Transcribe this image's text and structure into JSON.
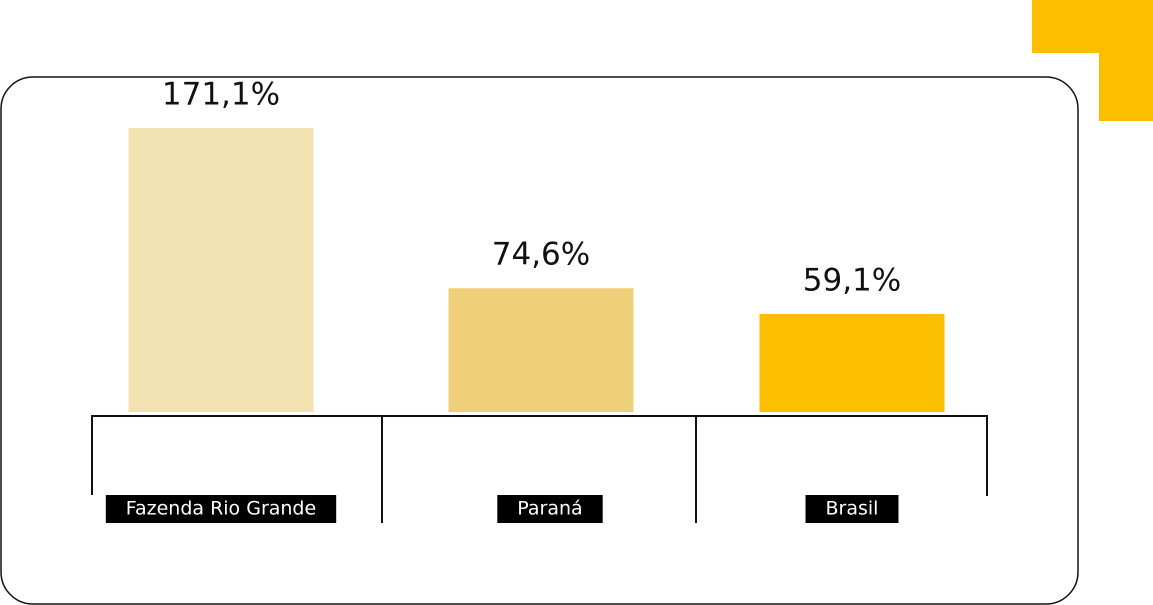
{
  "chart_data": {
    "type": "bar",
    "categories": [
      "Fazenda Rio Grande",
      "Paraná",
      "Brasil"
    ],
    "values": [
      171.1,
      74.6,
      59.1
    ],
    "value_labels": [
      "171,1%",
      "74,6%",
      "59,1%"
    ],
    "colors": [
      "#f2e2b2",
      "#efcf7a",
      "#fbbf00"
    ]
  }
}
